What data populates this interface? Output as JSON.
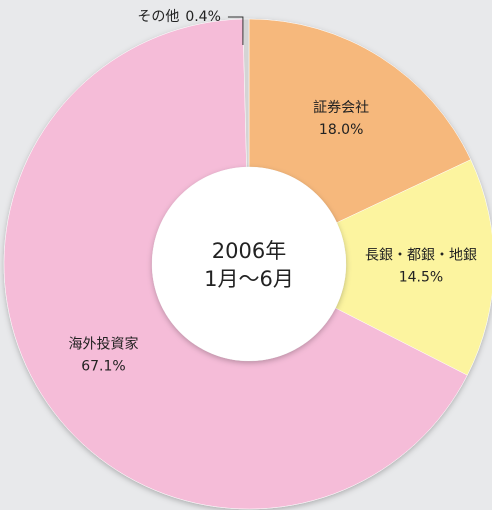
{
  "chart_data": {
    "type": "donut",
    "center_label": [
      "2006年",
      "1月〜6月"
    ],
    "categories": [
      "証券会社",
      "長銀・都銀・地銀",
      "海外投資家",
      "その他"
    ],
    "values": [
      18.0,
      14.5,
      67.1,
      0.4
    ],
    "value_labels": [
      "18.0%",
      "14.5%",
      "67.1%",
      "0.4%"
    ],
    "colors": [
      "#f6b87c",
      "#fcf49f",
      "#f5bcd8",
      "#d4d4d4"
    ]
  }
}
